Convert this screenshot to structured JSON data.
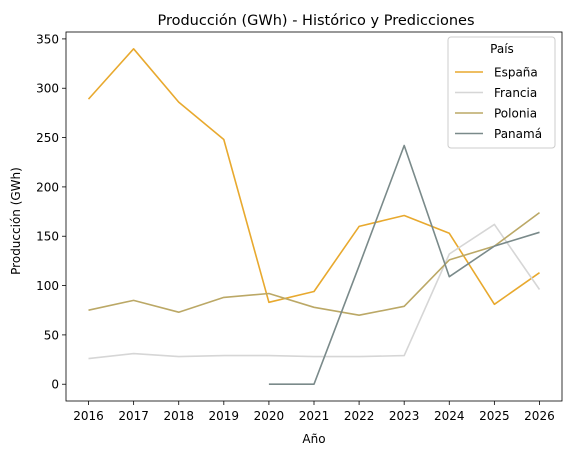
{
  "chart_data": {
    "type": "line",
    "title": "Producción (GWh) - Histórico y Predicciones",
    "xlabel": "Año",
    "ylabel": "Producción (GWh)",
    "x": [
      "2016",
      "2017",
      "2018",
      "2019",
      "2020",
      "2021",
      "2022",
      "2023",
      "2024",
      "2025",
      "2026"
    ],
    "xlim": [
      2015.5,
      2026.5
    ],
    "ylim": [
      -17,
      357
    ],
    "yticks": [
      0,
      50,
      100,
      150,
      200,
      250,
      300,
      350
    ],
    "grid": false,
    "legend": {
      "title": "País",
      "placement": "top-right"
    },
    "series": [
      {
        "name": "España",
        "color": "#E8A92E",
        "values": [
          289,
          340,
          286,
          248,
          83,
          94,
          160,
          171,
          153,
          81,
          113
        ]
      },
      {
        "name": "Francia",
        "color": "#D6D6D6",
        "values": [
          26,
          31,
          28,
          29,
          29,
          28,
          28,
          29,
          132,
          162,
          96
        ]
      },
      {
        "name": "Polonia",
        "color": "#BBA866",
        "values": [
          75,
          85,
          73,
          88,
          92,
          78,
          70,
          79,
          126,
          140,
          174
        ]
      },
      {
        "name": "Panamá",
        "color": "#7A8A8A",
        "values": [
          null,
          null,
          null,
          null,
          0,
          0,
          120,
          242,
          109,
          140,
          154
        ]
      }
    ]
  }
}
